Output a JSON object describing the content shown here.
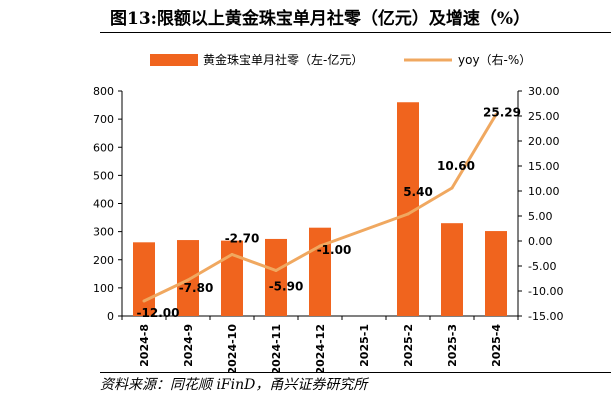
{
  "title": "图13:限额以上黄金珠宝单月社零（亿元）及增速（%）",
  "source": "资料来源：同花顺 iFinD，甬兴证券研究所",
  "chart_data": {
    "type": "bar+line",
    "categories": [
      "2024-8",
      "2024-9",
      "2024-10",
      "2024-11",
      "2024-12",
      "2025-1",
      "2025-2",
      "2025-3",
      "2025-4"
    ],
    "series": [
      {
        "name": "黄金珠宝单月社零（左-亿元）",
        "type": "bar",
        "axis": "left",
        "color": "#F0641E",
        "values": [
          262,
          270,
          268,
          274,
          314,
          null,
          760,
          330,
          302
        ]
      },
      {
        "name": "yoy（右-%）",
        "type": "line",
        "axis": "right",
        "color": "#F0A860",
        "values": [
          -12.0,
          -7.8,
          -2.7,
          -5.9,
          -1.0,
          null,
          5.4,
          10.6,
          25.29
        ],
        "labels": [
          "-12.00",
          "-7.80",
          "-2.70",
          "-5.90",
          "-1.00",
          "",
          "5.40",
          "10.60",
          "25.29"
        ]
      }
    ],
    "left_axis": {
      "min": 0,
      "max": 800,
      "step": 100,
      "ticks": [
        "0",
        "100",
        "200",
        "300",
        "400",
        "500",
        "600",
        "700",
        "800"
      ]
    },
    "right_axis": {
      "min": -15,
      "max": 30,
      "step": 5,
      "ticks": [
        "-15.00",
        "-10.00",
        "-5.00",
        "0.00",
        "5.00",
        "10.00",
        "15.00",
        "20.00",
        "25.00",
        "30.00"
      ]
    },
    "legend_position": "top",
    "grid": false
  }
}
